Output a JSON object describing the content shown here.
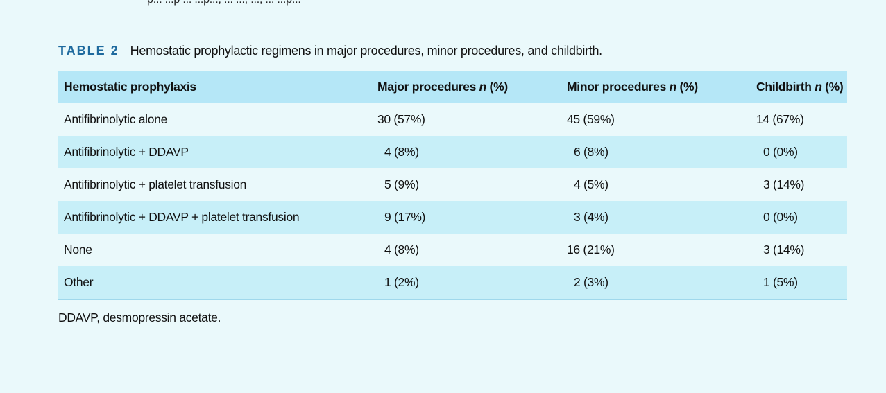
{
  "cut_text": "p... ...p ... ...p..., ... ..., ..., ... ...p...",
  "caption": {
    "label": "TABLE 2",
    "text": "Hemostatic prophylactic regimens in major procedures, minor procedures, and childbirth."
  },
  "table": {
    "headers": [
      {
        "text": "Hemostatic prophylaxis",
        "italic": "",
        "suffix": ""
      },
      {
        "text": "Major procedures ",
        "italic": "n",
        "suffix": " (%)"
      },
      {
        "text": "Minor procedures ",
        "italic": "n",
        "suffix": " (%)"
      },
      {
        "text": "Childbirth ",
        "italic": "n",
        "suffix": " (%)"
      }
    ],
    "rows": [
      [
        "Antifibrinolytic alone",
        "30 (57%)",
        "45 (59%)",
        "14 (67%)"
      ],
      [
        "Antifibrinolytic + DDAVP",
        "4 (8%)",
        "6 (8%)",
        "0 (0%)"
      ],
      [
        "Antifibrinolytic + platelet transfusion",
        "5 (9%)",
        "4 (5%)",
        "3 (14%)"
      ],
      [
        "Antifibrinolytic + DDAVP + platelet transfusion",
        "9 (17%)",
        "3 (4%)",
        "0 (0%)"
      ],
      [
        "None",
        "4 (8%)",
        "16 (21%)",
        "3 (14%)"
      ],
      [
        "Other",
        "1 (2%)",
        "2 (3%)",
        "1 (5%)"
      ]
    ]
  },
  "footnote": "DDAVP, desmopressin acetate."
}
